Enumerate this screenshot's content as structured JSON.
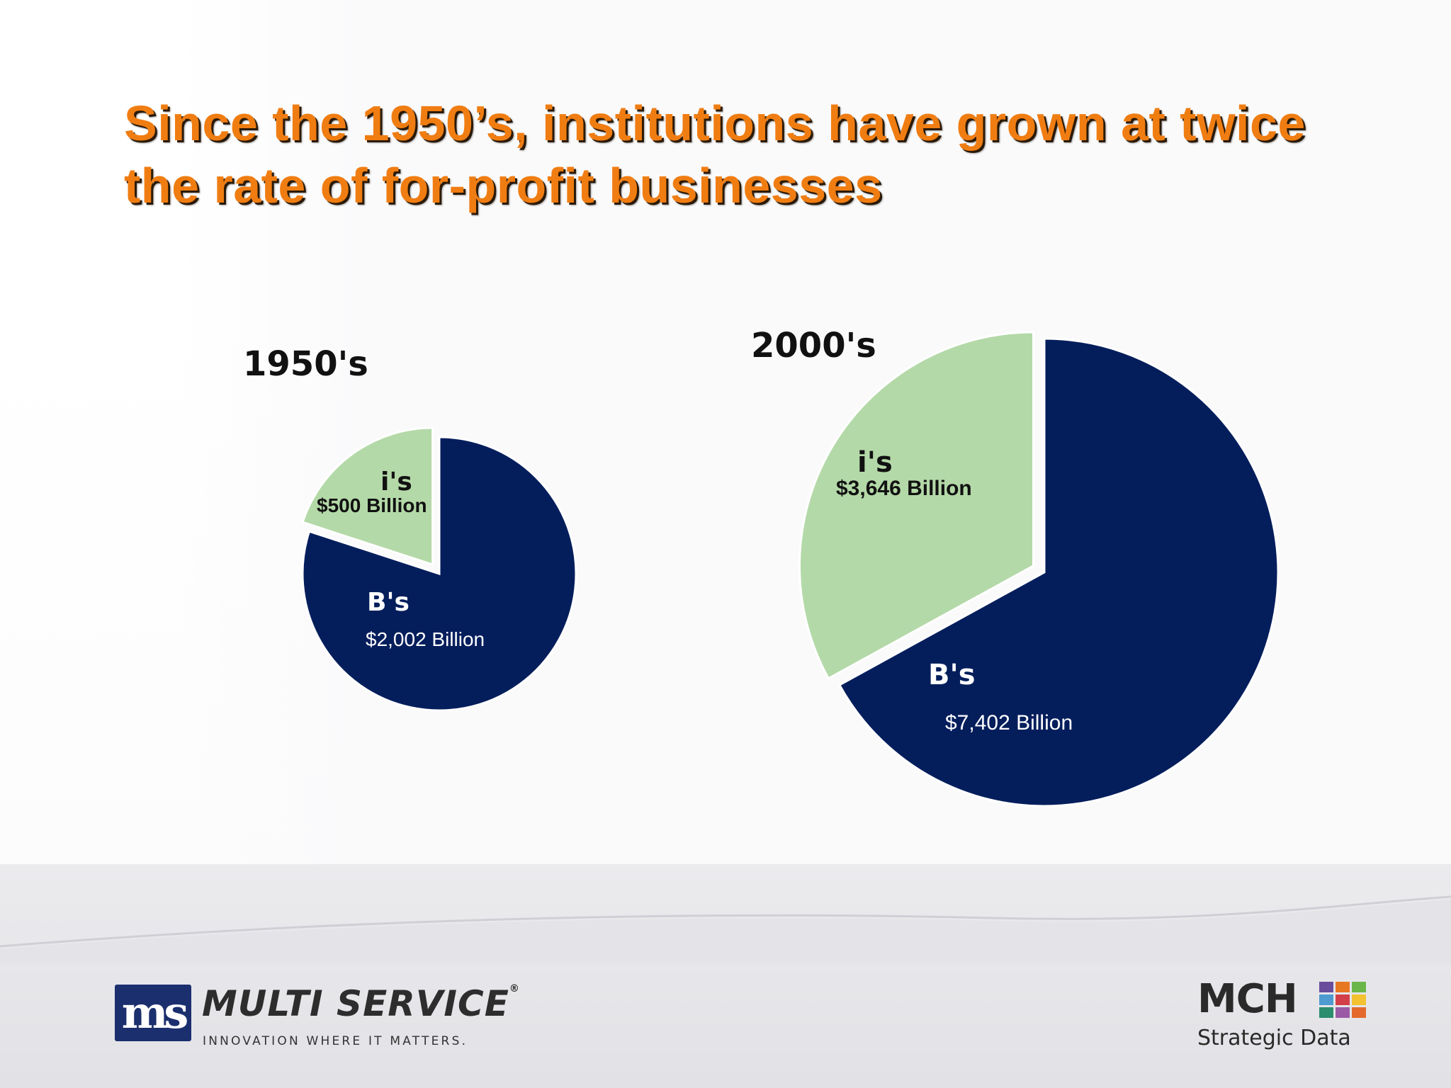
{
  "title": "Since the 1950’s, institutions have grown at twice the rate of for-profit businesses",
  "chart_data": [
    {
      "type": "pie",
      "title": "1950's",
      "categories": [
        "B's",
        "i's"
      ],
      "values": [
        2002,
        500
      ],
      "value_labels": [
        "$2,002 Billion",
        "$500 Billion"
      ],
      "colors": [
        "#041e5c",
        "#b4d9a8"
      ]
    },
    {
      "type": "pie",
      "title": "2000's",
      "categories": [
        "B's",
        "i's"
      ],
      "values": [
        7402,
        3646
      ],
      "value_labels": [
        "$7,402 Billion",
        "$3,646 Billion"
      ],
      "colors": [
        "#041e5c",
        "#b4d9a8"
      ]
    }
  ],
  "footer": {
    "left_logo": {
      "mark": "ms",
      "name": "MULTI SERVICE",
      "registered": "®",
      "tagline": "INNOVATION WHERE IT MATTERS."
    },
    "right_logo": {
      "name": "MCH",
      "subtitle": "Strategic Data",
      "tile_colors": [
        "#6a4c9c",
        "#e87722",
        "#6bb64a",
        "#4e9ad1",
        "#d33f49",
        "#f2c230",
        "#2b8c6e",
        "#9b5aa6",
        "#e36a2c"
      ]
    }
  }
}
